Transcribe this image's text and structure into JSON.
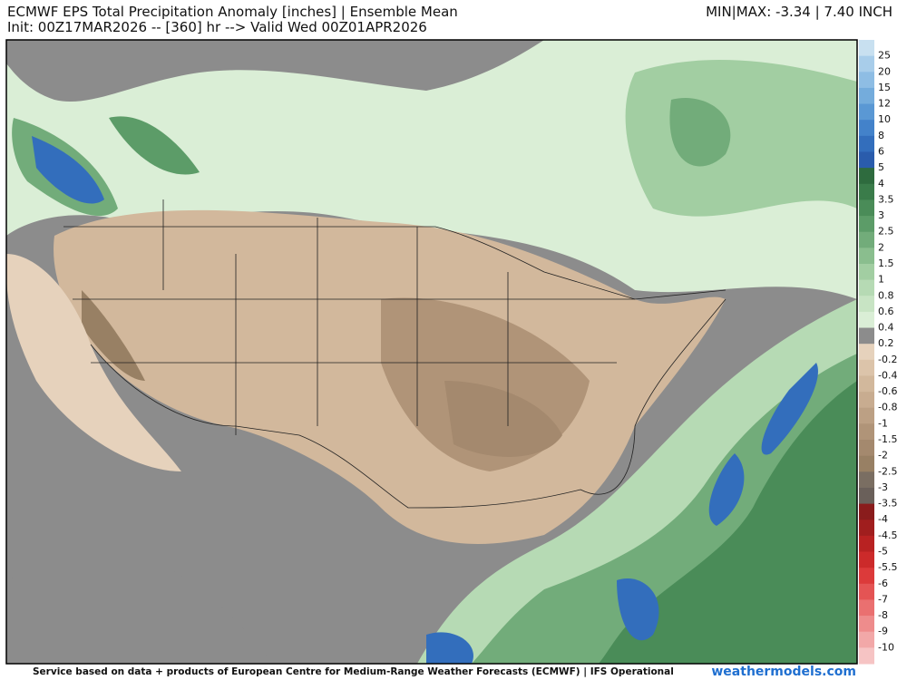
{
  "header": {
    "title": "ECMWF EPS Total Precipitation Anomaly [inches] | Ensemble Mean",
    "subtitle": "Init: 00Z17MAR2026 -- [360] hr --> Valid Wed 00Z01APR2026",
    "minmax": "MIN|MAX: -3.34 | 7.40 INCH"
  },
  "colorbar": {
    "labels": [
      "25",
      "20",
      "15",
      "12",
      "10",
      "8",
      "6",
      "5",
      "4",
      "3.5",
      "3",
      "2.5",
      "2",
      "1.5",
      "1",
      "0.8",
      "0.6",
      "0.4",
      "0.2",
      "-0.2",
      "-0.4",
      "-0.6",
      "-0.8",
      "-1",
      "-1.5",
      "-2",
      "-2.5",
      "-3",
      "-3.5",
      "-4",
      "-4.5",
      "-5",
      "-5.5",
      "-6",
      "-7",
      "-8",
      "-9",
      "-10"
    ],
    "colors": [
      "#c8e0f0",
      "#a8cdea",
      "#8ebde4",
      "#74acdc",
      "#5a98d4",
      "#4382ca",
      "#336ebc",
      "#2a5cac",
      "#2e6b3e",
      "#3a7c4a",
      "#4a8c58",
      "#5c9c68",
      "#72ac7a",
      "#8abe8e",
      "#a2cea2",
      "#b6dab4",
      "#c8e4c4",
      "#daeed6",
      "#8c8c8c",
      "#e6d2bc",
      "#dcc4aa",
      "#d2b89c",
      "#c8ac90",
      "#bca084",
      "#b09478",
      "#a4896e",
      "#988064",
      "#7a6e62",
      "#6a605a",
      "#8a1c1c",
      "#a01e1e",
      "#b82222",
      "#cc2a2a",
      "#dc3a3a",
      "#e45454",
      "#ea7070",
      "#ee8c8c",
      "#f2a8a8",
      "#f6c4c4"
    ]
  },
  "footer": {
    "credit": "Service based on data + products of European Centre for Medium-Range Weather Forecasts (ECMWF) | IFS Operational",
    "site": "weathermodels.com"
  }
}
